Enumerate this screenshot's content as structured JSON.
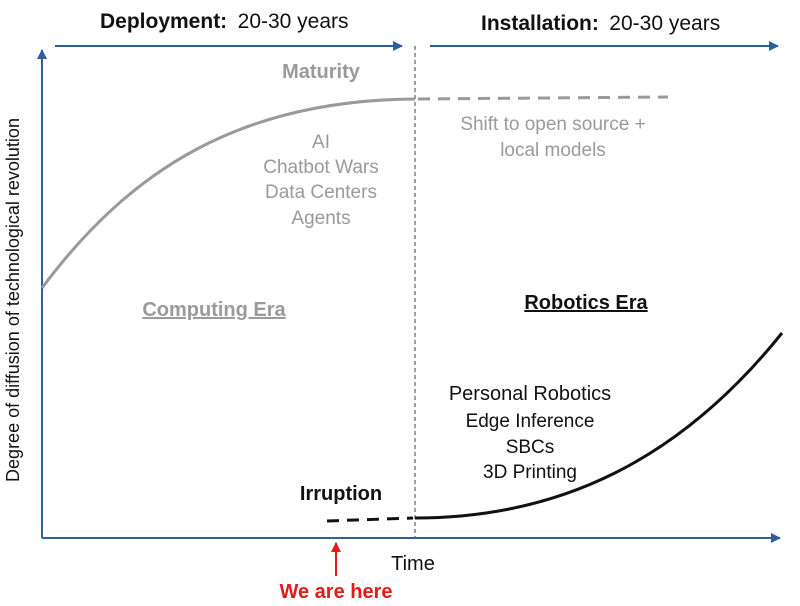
{
  "header": {
    "deployment_title": "Deployment:",
    "deployment_span": "20-30 years",
    "installation_title": "Installation:",
    "installation_span": "20-30 years"
  },
  "axes": {
    "y_label": "Degree of diffusion of technological revolution",
    "x_label": "Time"
  },
  "left": {
    "maturity_label": "Maturity",
    "items": [
      "AI",
      "Chatbot Wars",
      "Data Centers",
      "Agents"
    ],
    "era_label": "Computing Era"
  },
  "right": {
    "shift_lines": [
      "Shift to open source +",
      "local models"
    ],
    "era_label": "Robotics Era",
    "items": [
      "Personal Robotics",
      "Edge Inference",
      "SBCs",
      "3D Printing"
    ]
  },
  "irruption_label": "Irruption",
  "marker": {
    "label": "We are here",
    "color": "#e41a1a"
  },
  "colors": {
    "axis": "#2f5f9e",
    "computing_curve": "#9a9a9a",
    "robotics_curve": "#111111",
    "divider": "#5a6a8a"
  }
}
